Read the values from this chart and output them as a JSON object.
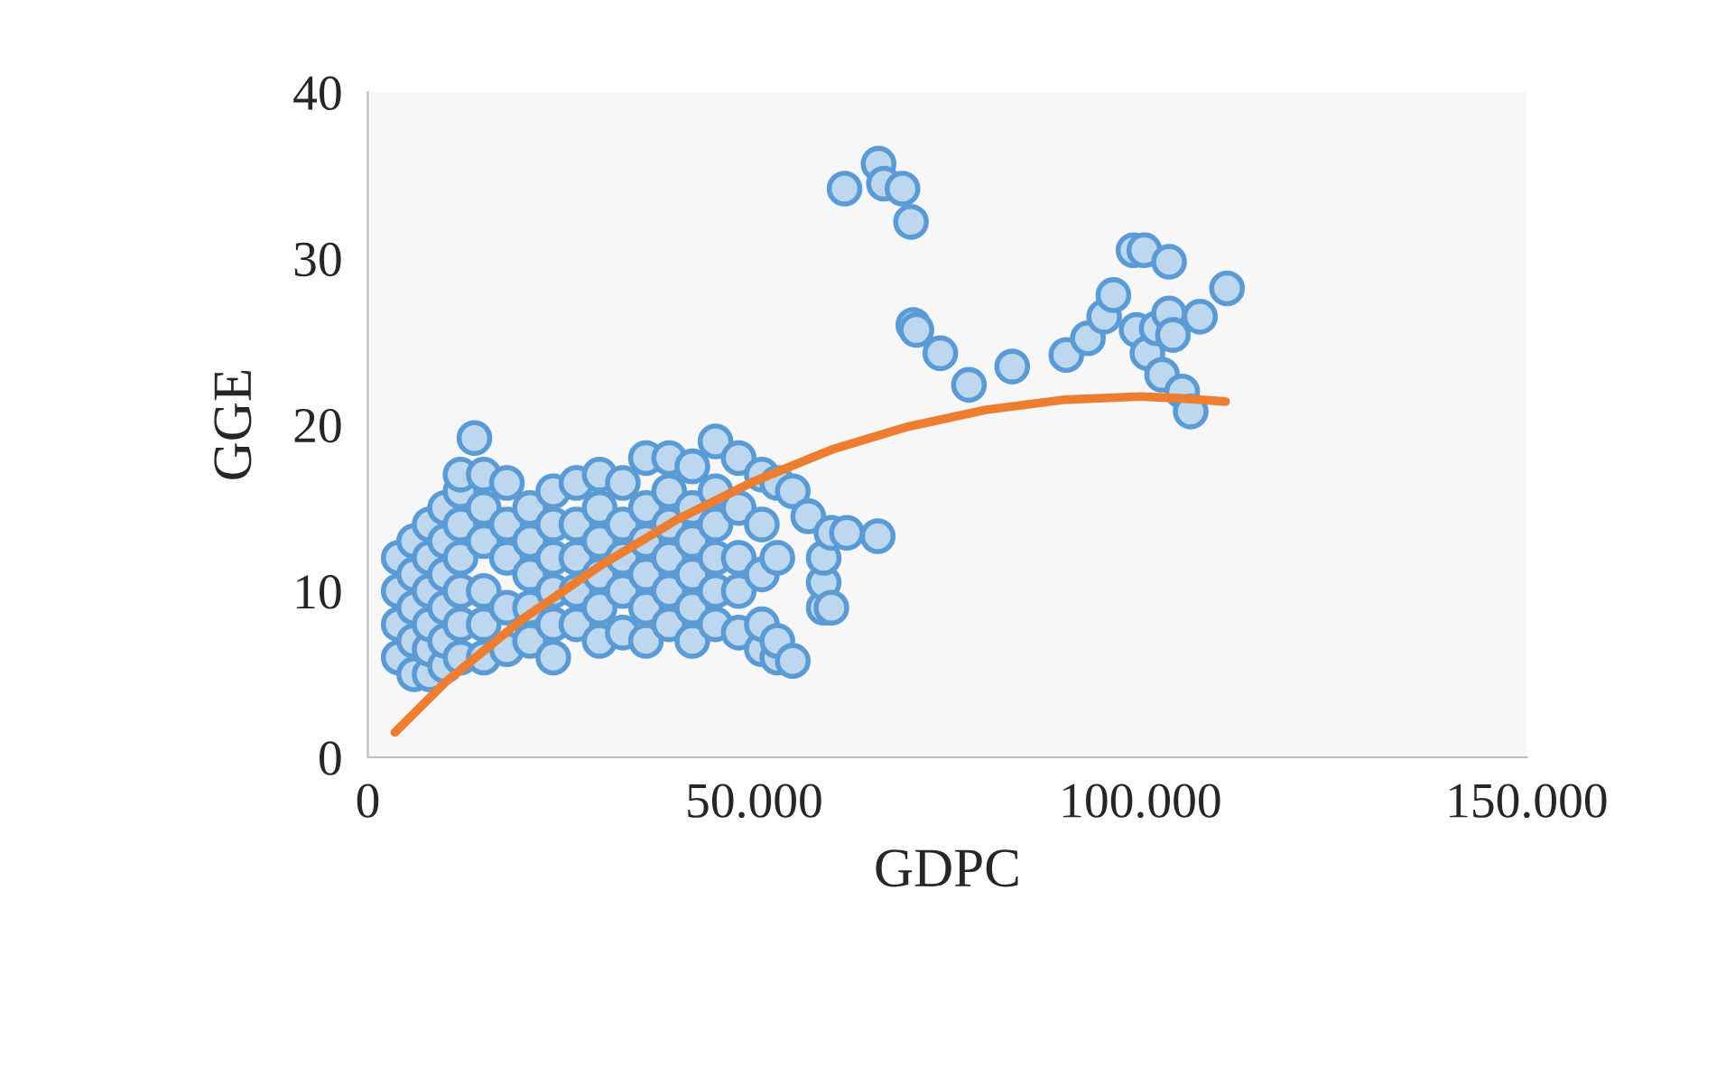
{
  "chart_data": {
    "type": "scatter",
    "xlabel": "GDPC",
    "ylabel": "GGE",
    "xlim": [
      0,
      150000
    ],
    "ylim": [
      0,
      40
    ],
    "xticks": [
      0,
      {
        "value": 50000,
        "label": "50.000"
      },
      {
        "value": 100000,
        "label": "100.000"
      },
      {
        "value": 150000,
        "label": "150.000"
      }
    ],
    "yticks": [
      0,
      10,
      20,
      30,
      40
    ],
    "grid": false,
    "marker": "circle",
    "series": [
      {
        "color": "#5b9bd5",
        "x": [
          4000,
          4000,
          4000,
          4000,
          6000,
          6000,
          6000,
          6000,
          6000,
          8000,
          8000,
          8000,
          8000,
          8000,
          8000,
          10000,
          10000,
          10000,
          10000,
          10000,
          10000,
          12000,
          12000,
          12000,
          12000,
          12000,
          12000,
          12000,
          13800,
          15000,
          15000,
          15000,
          15000,
          15000,
          15000,
          18000,
          18000,
          18000,
          18000,
          18000,
          21000,
          21000,
          21000,
          21000,
          21000,
          24000,
          24000,
          24000,
          24000,
          24000,
          24000,
          27000,
          27000,
          27000,
          27000,
          27000,
          30000,
          30000,
          30000,
          30000,
          30000,
          30000,
          33000,
          33000,
          33000,
          33000,
          33000,
          36000,
          36000,
          36000,
          36000,
          36000,
          36000,
          39000,
          39000,
          39000,
          39000,
          39000,
          39000,
          42000,
          42000,
          42000,
          42000,
          42000,
          42000,
          45000,
          45000,
          45000,
          45000,
          45000,
          45000,
          48000,
          48000,
          48000,
          48000,
          48000,
          51000,
          51000,
          51000,
          51000,
          51000,
          53000,
          53000,
          53000,
          53000,
          55000,
          55000,
          57000,
          59000,
          59000,
          59000,
          60000,
          60000,
          62000,
          66000,
          61700,
          66100,
          66800,
          69200,
          70300,
          70600,
          71000,
          74100,
          77800,
          83400,
          90400,
          93200,
          95300,
          96500,
          99100,
          100500,
          103700,
          99500,
          100900,
          102100,
          103700,
          104200,
          102800,
          105400,
          106500,
          107700,
          111200
        ],
        "values": [
          6,
          8,
          10,
          12,
          5,
          7,
          9,
          11,
          13,
          5,
          6.5,
          8,
          10,
          12,
          14,
          5.5,
          7,
          9,
          11,
          13,
          15,
          6,
          8,
          10,
          12,
          14,
          16,
          17,
          19.2,
          6,
          8,
          10,
          13,
          15,
          17,
          6.5,
          9,
          12,
          14,
          16.5,
          7,
          9,
          11,
          13,
          15,
          6,
          8,
          10,
          12,
          14,
          16,
          8,
          10,
          12,
          14,
          16.5,
          7,
          9,
          11,
          13,
          15,
          17,
          7.5,
          10,
          12,
          14,
          16.5,
          7,
          9,
          11,
          13,
          15,
          18,
          8,
          10,
          12,
          14,
          16,
          18,
          7,
          9,
          11,
          13,
          15,
          17.5,
          8,
          10,
          12,
          14,
          16,
          19,
          7.5,
          10,
          12,
          15,
          18,
          6.5,
          8,
          11,
          14,
          17,
          6,
          7,
          12,
          16.5,
          5.8,
          16,
          14.5,
          9,
          10.5,
          12,
          9,
          13.5,
          13.5,
          13.3,
          34.2,
          35.7,
          34.5,
          34.2,
          32.2,
          26.0,
          25.7,
          24.3,
          22.4,
          23.5,
          24.2,
          25.2,
          26.5,
          27.8,
          30.5,
          30.5,
          29.8,
          25.7,
          24.3,
          25.8,
          26.7,
          25.4,
          23.0,
          22.0,
          20.8,
          26.5,
          28.2
        ]
      },
      {
        "type": "line",
        "color": "#ed7d31",
        "line_style": "solid",
        "marker": "none",
        "x": [
          3500,
          10000,
          20000,
          30000,
          40000,
          50000,
          60000,
          70000,
          80000,
          90000,
          100000,
          105000,
          111000
        ],
        "values": [
          1.5,
          4.5,
          8.3,
          11.5,
          14.3,
          16.6,
          18.5,
          19.9,
          20.9,
          21.5,
          21.7,
          21.6,
          21.4
        ]
      }
    ]
  }
}
